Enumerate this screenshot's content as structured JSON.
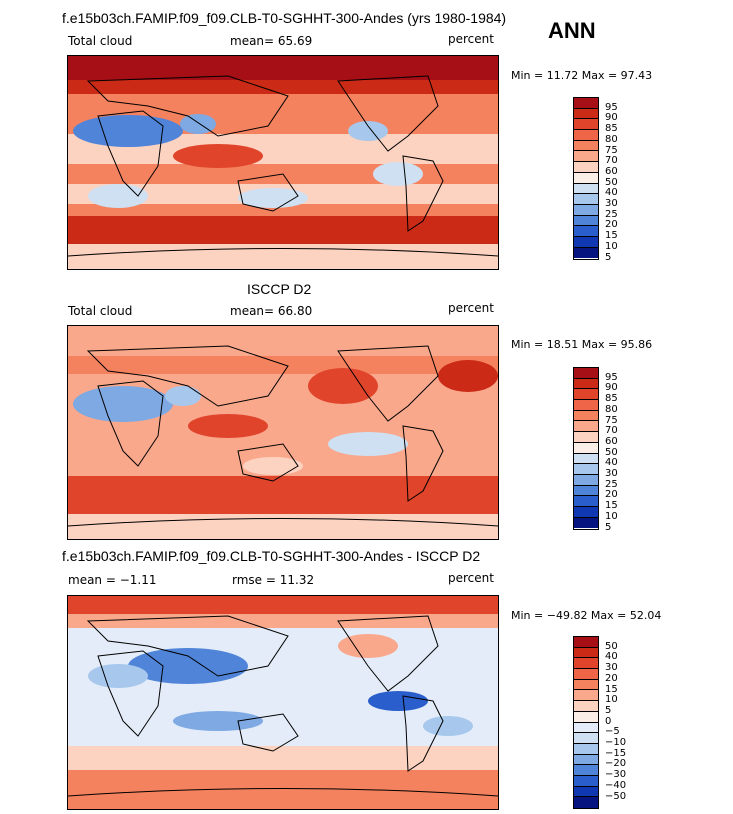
{
  "season": "ANN",
  "chart_data": [
    {
      "type": "heatmap",
      "title": "f.e15b03ch.FAMIP.f09_f09.CLB-T0-SGHHT-300-Andes (yrs 1980-1984)",
      "left_label": "Total cloud",
      "center_label": "mean=  65.69",
      "mean": 65.69,
      "units": "percent",
      "minmax_text": "Min =  11.72 Max =  97.43",
      "min": 11.72,
      "max": 97.43,
      "levels": [
        "95",
        "90",
        "85",
        "80",
        "75",
        "70",
        "60",
        "50",
        "40",
        "30",
        "25",
        "20",
        "15",
        "10",
        "5"
      ],
      "colors": [
        "#a50f15",
        "#cb2a17",
        "#e0442b",
        "#ef6548",
        "#f4825f",
        "#f9a88c",
        "#fcd2c0",
        "#fbeee6",
        "#cfe0f3",
        "#a7c8ec",
        "#7ea9e3",
        "#4f84d9",
        "#2a5ecc",
        "#1038b3",
        "#06147f"
      ]
    },
    {
      "type": "heatmap",
      "title": "ISCCP D2",
      "left_label": "Total cloud",
      "center_label": "mean=  66.80",
      "mean": 66.8,
      "units": "percent",
      "minmax_text": "Min =  18.51 Max =  95.86",
      "min": 18.51,
      "max": 95.86,
      "levels": [
        "95",
        "90",
        "85",
        "80",
        "75",
        "70",
        "60",
        "50",
        "40",
        "30",
        "25",
        "20",
        "15",
        "10",
        "5"
      ],
      "colors": [
        "#a50f15",
        "#cb2a17",
        "#e0442b",
        "#ef6548",
        "#f4825f",
        "#f9a88c",
        "#fcd2c0",
        "#fbeee6",
        "#cfe0f3",
        "#a7c8ec",
        "#7ea9e3",
        "#4f84d9",
        "#2a5ecc",
        "#1038b3",
        "#06147f"
      ]
    },
    {
      "type": "heatmap",
      "title": "f.e15b03ch.FAMIP.f09_f09.CLB-T0-SGHHT-300-Andes - ISCCP D2",
      "left_label": "mean = −1.11",
      "center_label": "rmse =  11.32",
      "mean": -1.11,
      "rmse": 11.32,
      "units": "percent",
      "minmax_text": "Min = −49.82 Max =  52.04",
      "min": -49.82,
      "max": 52.04,
      "levels": [
        "50",
        "40",
        "30",
        "20",
        "15",
        "10",
        "5",
        "0",
        "−5",
        "−10",
        "−15",
        "−20",
        "−30",
        "−40",
        "−50"
      ],
      "colors": [
        "#a50f15",
        "#cb2a17",
        "#e0442b",
        "#ef6548",
        "#f4825f",
        "#f9a88c",
        "#fcd2c0",
        "#fbeee6",
        "#e3ecf8",
        "#cfe0f3",
        "#a7c8ec",
        "#7ea9e3",
        "#4f84d9",
        "#2a5ecc",
        "#1038b3",
        "#06147f"
      ]
    }
  ]
}
